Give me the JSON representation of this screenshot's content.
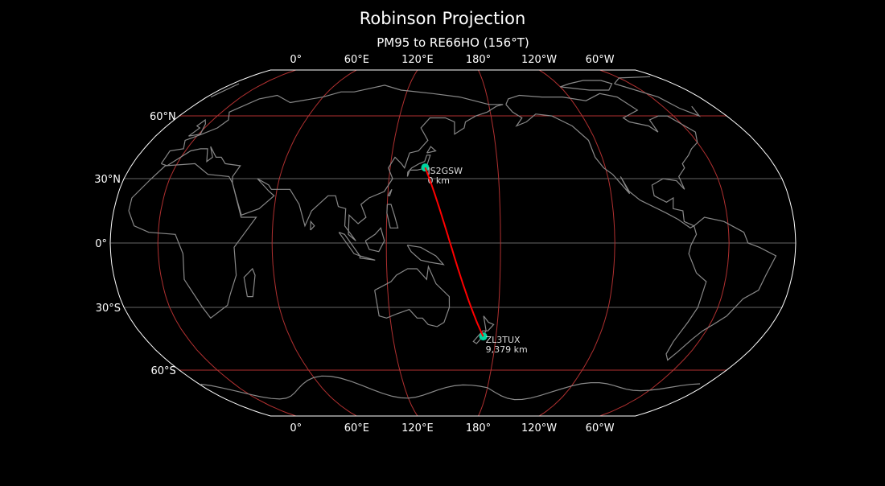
{
  "title": "Robinson Projection",
  "subtitle": "PM95 to RE66HO (156°T)",
  "map": {
    "projection": "Robinson",
    "central_longitude": 155,
    "background": "#000000",
    "coastline_color": "#888888",
    "graticule_color": "#b03030",
    "minor_grid_color": "#666666",
    "path_color": "#ff0000",
    "station_color": "#00d4a0"
  },
  "lon_labels": [
    {
      "lon": 0,
      "text": "0°"
    },
    {
      "lon": 60,
      "text": "60°E"
    },
    {
      "lon": 120,
      "text": "120°E"
    },
    {
      "lon": 180,
      "text": "180°"
    },
    {
      "lon": -120,
      "text": "120°W"
    },
    {
      "lon": -60,
      "text": "60°W"
    }
  ],
  "lat_labels": [
    {
      "lat": 60,
      "text": "60°N"
    },
    {
      "lat": 30,
      "text": "30°N"
    },
    {
      "lat": 0,
      "text": "0°"
    },
    {
      "lat": -30,
      "text": "30°S"
    },
    {
      "lat": -60,
      "text": "60°S"
    }
  ],
  "stations": [
    {
      "call": "JS2GSW",
      "distance": "0 km",
      "lat": 35.2,
      "lon": 139.5
    },
    {
      "call": "ZL3TUX",
      "distance": "9,379 km",
      "lat": -43.6,
      "lon": 172.6
    }
  ]
}
